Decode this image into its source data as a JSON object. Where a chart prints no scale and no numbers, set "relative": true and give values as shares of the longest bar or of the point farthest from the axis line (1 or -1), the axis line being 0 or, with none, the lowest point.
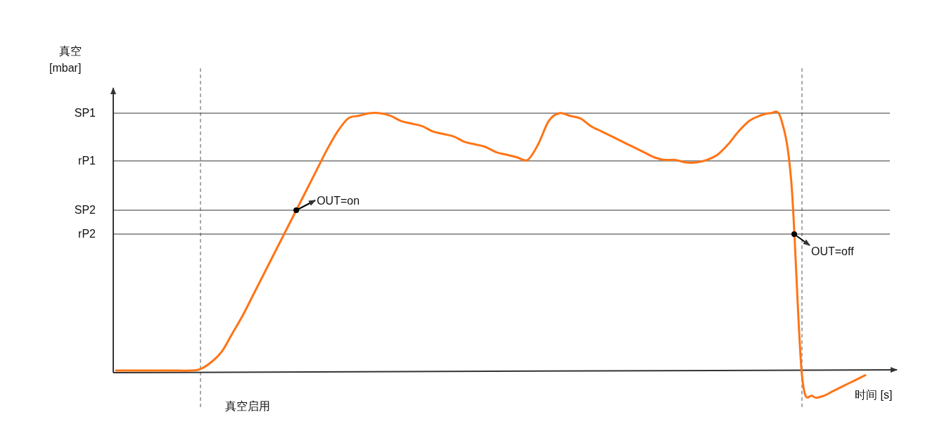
{
  "chart_data": {
    "type": "line",
    "relative": true,
    "categories": [
      null,
      null,
      null,
      null,
      null,
      null,
      null,
      null,
      null,
      null,
      null,
      null,
      null,
      null,
      null,
      null,
      null,
      null,
      null,
      null,
      null,
      null,
      null,
      null,
      null,
      null,
      null,
      null,
      null,
      null,
      null,
      null,
      null,
      null,
      null,
      null,
      null,
      null,
      null,
      null,
      null,
      null,
      null,
      null,
      null,
      null,
      null,
      null,
      null,
      null,
      null,
      null,
      null,
      null,
      null,
      null,
      null,
      null,
      null,
      null,
      null,
      null,
      null,
      null,
      null,
      null,
      null,
      null,
      null,
      null,
      null,
      null
    ],
    "series": [
      {
        "color": "#ff7415",
        "values": [
          0.008,
          0.008,
          0.008,
          0.008,
          0.008,
          0.008,
          0.008,
          0.008,
          0.014,
          0.04,
          0.08,
          0.15,
          0.22,
          0.3,
          0.38,
          0.46,
          0.54,
          0.62,
          0.7,
          0.78,
          0.86,
          0.93,
          0.98,
          0.99,
          1.0,
          1.0,
          0.99,
          0.97,
          0.96,
          0.95,
          0.93,
          0.92,
          0.91,
          0.89,
          0.88,
          0.87,
          0.85,
          0.84,
          0.83,
          0.82,
          0.88,
          0.97,
          1.0,
          0.99,
          0.98,
          0.95,
          0.93,
          0.91,
          0.89,
          0.87,
          0.85,
          0.83,
          0.82,
          0.82,
          0.81,
          0.81,
          0.82,
          0.84,
          0.88,
          0.93,
          0.97,
          0.99,
          1.0,
          0.98,
          0.73,
          -0.01,
          -0.09,
          -0.09,
          -0.07,
          -0.05,
          -0.03,
          -0.01
        ]
      }
    ],
    "xlabel": "时间 [s]",
    "ylabel": "真空\n[mbar]",
    "ref_lines": [
      {
        "axis": "y",
        "value": 1.0,
        "label": "SP1",
        "color": "#333333",
        "line_style": "solid"
      },
      {
        "axis": "y",
        "value": 0.816,
        "label": "rP1",
        "color": "#333333",
        "line_style": "solid"
      },
      {
        "axis": "y",
        "value": 0.626,
        "label": "SP2",
        "color": "#333333",
        "line_style": "solid"
      },
      {
        "axis": "y",
        "value": 0.534,
        "label": "rP2",
        "color": "#333333",
        "line_style": "solid"
      }
    ],
    "annotations": [
      "真空启用",
      {
        "text": "OUT=on",
        "y": 0.626
      },
      {
        "text": "OUT=off",
        "y": 0.534
      }
    ]
  }
}
